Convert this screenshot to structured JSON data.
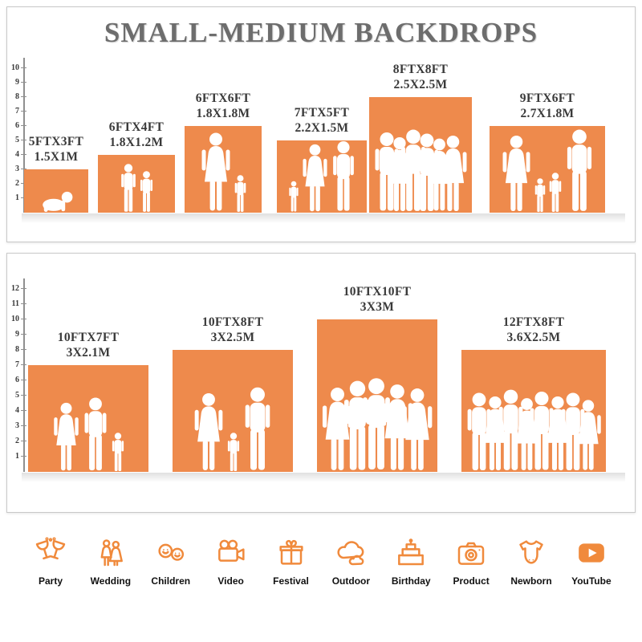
{
  "title": "SMALL-MEDIUM BACKDROPS",
  "colors": {
    "bar_orange": "#EE8A4C",
    "icon_orange": "#F08A3C",
    "label_dark": "#3A3A3A",
    "title_gray": "#6D6D6D"
  },
  "chart_data": [
    {
      "type": "bar",
      "ylim": [
        0,
        10
      ],
      "axis_ticks": [
        1,
        2,
        3,
        4,
        5,
        6,
        7,
        8,
        9,
        10
      ],
      "categories": [
        "5FTX3FT",
        "6FTX4FT",
        "6FTX6FT",
        "7FTX5FT",
        "8FTX8FT",
        "9FTX6FT"
      ],
      "series": [
        {
          "name": "width_ft",
          "values": [
            5,
            6,
            6,
            7,
            8,
            9
          ]
        },
        {
          "name": "height_ft",
          "values": [
            3,
            4,
            6,
            5,
            8,
            6
          ]
        }
      ],
      "bars": [
        {
          "ft_label": "5FTX3FT",
          "m_label": "1.5X1M",
          "w_ft": 5,
          "h_ft": 3,
          "figures": [
            {
              "type": "baby",
              "ft": 1.6
            }
          ]
        },
        {
          "ft_label": "6FTX4FT",
          "m_label": "1.8X1.2M",
          "w_ft": 6,
          "h_ft": 4,
          "figures": [
            {
              "type": "child",
              "ft": 3.4
            },
            {
              "type": "child",
              "ft": 2.9
            }
          ]
        },
        {
          "ft_label": "6FTX6FT",
          "m_label": "1.8X1.8M",
          "w_ft": 6,
          "h_ft": 6,
          "figures": [
            {
              "type": "woman",
              "ft": 5.6
            },
            {
              "type": "child",
              "ft": 2.6
            }
          ]
        },
        {
          "ft_label": "7FTX5FT",
          "m_label": "2.2X1.5M",
          "w_ft": 7,
          "h_ft": 5,
          "figures": [
            {
              "type": "child",
              "ft": 2.2
            },
            {
              "type": "woman",
              "ft": 4.8
            },
            {
              "type": "man",
              "ft": 5.0
            }
          ]
        },
        {
          "ft_label": "8FTX8FT",
          "m_label": "2.5X2.5M",
          "w_ft": 8,
          "h_ft": 8,
          "figures": [
            {
              "type": "man",
              "ft": 5.6
            },
            {
              "type": "woman",
              "ft": 5.3
            },
            {
              "type": "man",
              "ft": 5.8
            },
            {
              "type": "man",
              "ft": 5.5
            },
            {
              "type": "woman",
              "ft": 5.2
            },
            {
              "type": "woman",
              "ft": 5.4
            }
          ]
        },
        {
          "ft_label": "9FTX6FT",
          "m_label": "2.7X1.8M",
          "w_ft": 9,
          "h_ft": 6,
          "figures": [
            {
              "type": "woman",
              "ft": 5.4
            },
            {
              "type": "child",
              "ft": 2.4
            },
            {
              "type": "child",
              "ft": 2.8
            },
            {
              "type": "man",
              "ft": 5.8
            }
          ]
        }
      ]
    },
    {
      "type": "bar",
      "ylim": [
        0,
        12
      ],
      "axis_ticks": [
        1,
        2,
        3,
        4,
        5,
        6,
        7,
        8,
        9,
        10,
        11,
        12
      ],
      "categories": [
        "10FTX7FT",
        "10FTX8FT",
        "10FTX10FT",
        "12FTX8FT"
      ],
      "series": [
        {
          "name": "width_ft",
          "values": [
            10,
            10,
            10,
            12
          ]
        },
        {
          "name": "height_ft",
          "values": [
            7,
            8,
            10,
            8
          ]
        }
      ],
      "bars": [
        {
          "ft_label": "10FTX7FT",
          "m_label": "3X2.1M",
          "w_ft": 10,
          "h_ft": 7,
          "figures": [
            {
              "type": "woman",
              "ft": 4.6
            },
            {
              "type": "man",
              "ft": 4.9
            },
            {
              "type": "child",
              "ft": 2.6
            }
          ]
        },
        {
          "ft_label": "10FTX8FT",
          "m_label": "3X2.5M",
          "w_ft": 10,
          "h_ft": 8,
          "figures": [
            {
              "type": "woman",
              "ft": 5.2
            },
            {
              "type": "child",
              "ft": 2.6
            },
            {
              "type": "man",
              "ft": 5.6
            }
          ]
        },
        {
          "ft_label": "10FTX10FT",
          "m_label": "3X3M",
          "w_ft": 10,
          "h_ft": 10,
          "figures": [
            {
              "type": "woman",
              "ft": 5.6
            },
            {
              "type": "man",
              "ft": 6.0
            },
            {
              "type": "man",
              "ft": 6.2
            },
            {
              "type": "woman",
              "ft": 5.8
            },
            {
              "type": "woman",
              "ft": 5.5
            }
          ]
        },
        {
          "ft_label": "12FTX8FT",
          "m_label": "3.6X2.5M",
          "w_ft": 12,
          "h_ft": 8,
          "figures": [
            {
              "type": "man",
              "ft": 5.2
            },
            {
              "type": "woman",
              "ft": 5.0
            },
            {
              "type": "man",
              "ft": 5.4
            },
            {
              "type": "woman",
              "ft": 4.9
            },
            {
              "type": "man",
              "ft": 5.3
            },
            {
              "type": "woman",
              "ft": 5.0
            },
            {
              "type": "man",
              "ft": 5.2
            },
            {
              "type": "woman",
              "ft": 4.8
            }
          ]
        }
      ]
    }
  ],
  "categories": [
    {
      "label": "Party",
      "icon": "party-icon"
    },
    {
      "label": "Wedding",
      "icon": "wedding-icon"
    },
    {
      "label": "Children",
      "icon": "children-icon"
    },
    {
      "label": "Video",
      "icon": "video-icon"
    },
    {
      "label": "Festival",
      "icon": "festival-icon"
    },
    {
      "label": "Outdoor",
      "icon": "outdoor-icon"
    },
    {
      "label": "Birthday",
      "icon": "birthday-icon"
    },
    {
      "label": "Product",
      "icon": "product-icon"
    },
    {
      "label": "Newborn",
      "icon": "newborn-icon"
    },
    {
      "label": "YouTube",
      "icon": "youtube-icon"
    }
  ]
}
